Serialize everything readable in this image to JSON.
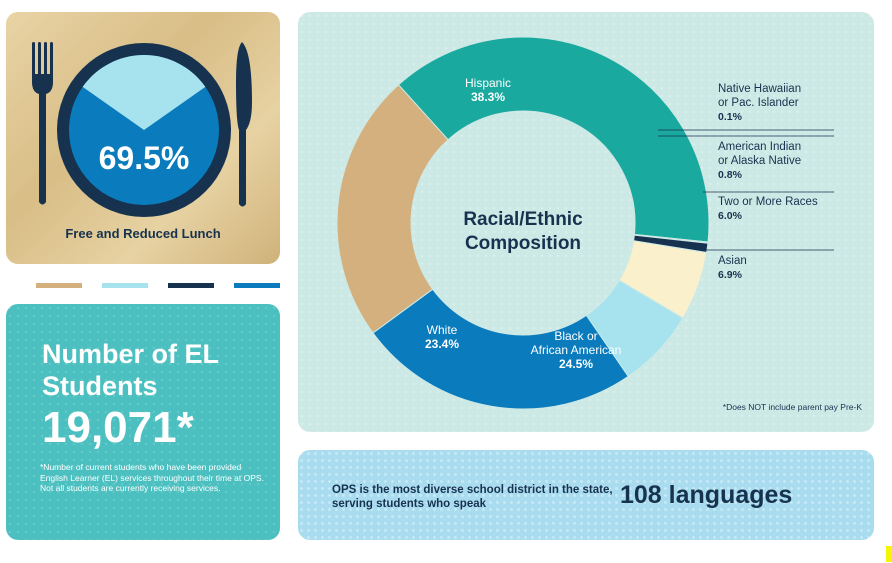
{
  "lunch": {
    "value": "69.5%",
    "label": "Free and Reduced Lunch",
    "fraction": 0.695
  },
  "swatches": [
    "#d4b07f",
    "#a6e3ee",
    "#17324e",
    "#0a7bbd"
  ],
  "el": {
    "title": "Number of EL Students",
    "count": "19,071*",
    "note": "*Number of current students who have been provided English Learner (EL) services throughout their time at OPS. Not all students are currently receiving services."
  },
  "chart_data": {
    "type": "pie",
    "title": "Racial/Ethnic Composition",
    "series": [
      {
        "name": "Hispanic",
        "value": 38.3,
        "label": "38.3%",
        "color": "#1aa99f"
      },
      {
        "name": "Native Hawaiian or Pac. Islander",
        "value": 0.1,
        "label": "0.1%",
        "color": "#b9dedb"
      },
      {
        "name": "American Indian or Alaska Native",
        "value": 0.8,
        "label": "0.8%",
        "color": "#17324e"
      },
      {
        "name": "Two or More Races",
        "value": 6.0,
        "label": "6.0%",
        "color": "#fbf0cc"
      },
      {
        "name": "Asian",
        "value": 6.9,
        "label": "6.9%",
        "color": "#a6e3ee"
      },
      {
        "name": "Black or African American",
        "value": 24.5,
        "label": "24.5%",
        "color": "#0a7bbd"
      },
      {
        "name": "White",
        "value": 23.4,
        "label": "23.4%",
        "color": "#d4b07f"
      }
    ],
    "footnote": "*Does NOT include parent pay Pre-K"
  },
  "languages": {
    "text": "OPS is the most diverse school district in the state, serving students who speak",
    "count": "108 languages"
  }
}
